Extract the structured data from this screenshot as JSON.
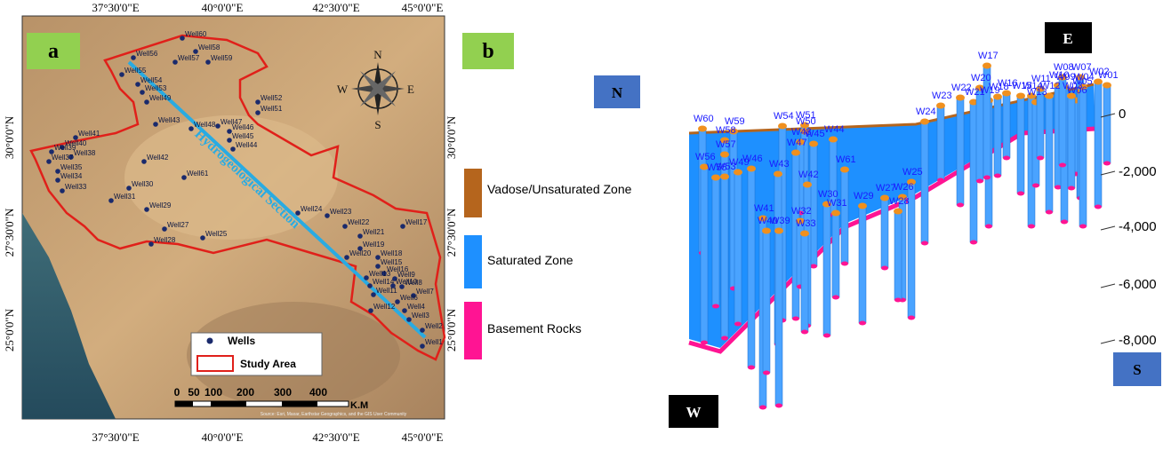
{
  "panel_a": {
    "label": "a",
    "lon_labels_top": [
      "37°30'0\"E",
      "40°0'0\"E",
      "42°30'0\"E",
      "45°0'0\"E"
    ],
    "lon_labels_bottom": [
      "37°30'0\"E",
      "40°0'0\"E",
      "42°30'0\"E",
      "45°0'0\"E"
    ],
    "lat_labels_left": [
      "30°0'0\"N",
      "27°30'0\"N",
      "25°0'0\"N"
    ],
    "lat_labels_right": [
      "30°0'0\"N",
      "27°30'0\"N",
      "25°0'0\"N"
    ],
    "compass": {
      "n": "N",
      "s": "S",
      "e": "E",
      "w": "W"
    },
    "section_label": "Hydrogeological Section",
    "legend": {
      "wells": "Wells",
      "study_area": "Study Area"
    },
    "scale": {
      "ticks": [
        "0",
        "50",
        "100",
        "200",
        "300",
        "400"
      ],
      "unit": "K.M"
    },
    "attribution": "Source: Esri, Maxar, Earthstar Geographics, and the GIS User Community",
    "wells": [
      "Well60",
      "Well58",
      "Well57",
      "Well59",
      "Well56",
      "Well55",
      "Well54",
      "Well53",
      "Well49",
      "Well52",
      "Well51",
      "Well43",
      "Well47",
      "Well48",
      "Well46",
      "Well45",
      "Well44",
      "Well41",
      "Well40",
      "Well39",
      "Well38",
      "Well37",
      "Well35",
      "Well34",
      "Well33",
      "Well42",
      "Well61",
      "Well30",
      "Well31",
      "Well29",
      "Well27",
      "Well28",
      "Well25",
      "Well24",
      "Well23",
      "Well22",
      "Well21",
      "Well17",
      "Well19",
      "Well20",
      "Well18",
      "Well15",
      "Well16",
      "Well13",
      "Well14",
      "Well9",
      "Well8",
      "Well10",
      "Well7",
      "Well11",
      "Well6",
      "Well12",
      "Well4",
      "Well3",
      "Well2",
      "Well1"
    ]
  },
  "panel_b": {
    "label": "b",
    "directions": {
      "n": "N",
      "e": "E",
      "s": "S",
      "w": "W"
    },
    "legend": [
      "Vadose/Unsaturated Zone",
      "Saturated Zone",
      "Basement Rocks"
    ],
    "depth_ticks": [
      "0",
      "-2,000",
      "-4,000",
      "-6,000",
      "-8,000"
    ],
    "wells": [
      "W60",
      "W59",
      "W58",
      "W57",
      "W56",
      "W55",
      "W53",
      "W54",
      "W51",
      "W50",
      "W48",
      "W47",
      "W46",
      "W49",
      "W45",
      "W44",
      "W43",
      "W42",
      "W61",
      "W41",
      "W40",
      "W39",
      "W32",
      "W33",
      "W30",
      "W31",
      "W29",
      "W27",
      "W26",
      "W25",
      "W28",
      "W24",
      "W23",
      "W22",
      "W21",
      "W20",
      "W19",
      "W18",
      "W17",
      "W16",
      "W15",
      "W14",
      "W13",
      "W12",
      "W11",
      "W10",
      "W09",
      "W08",
      "W07",
      "W06",
      "W05",
      "W04",
      "W03",
      "W02",
      "W01"
    ]
  }
}
